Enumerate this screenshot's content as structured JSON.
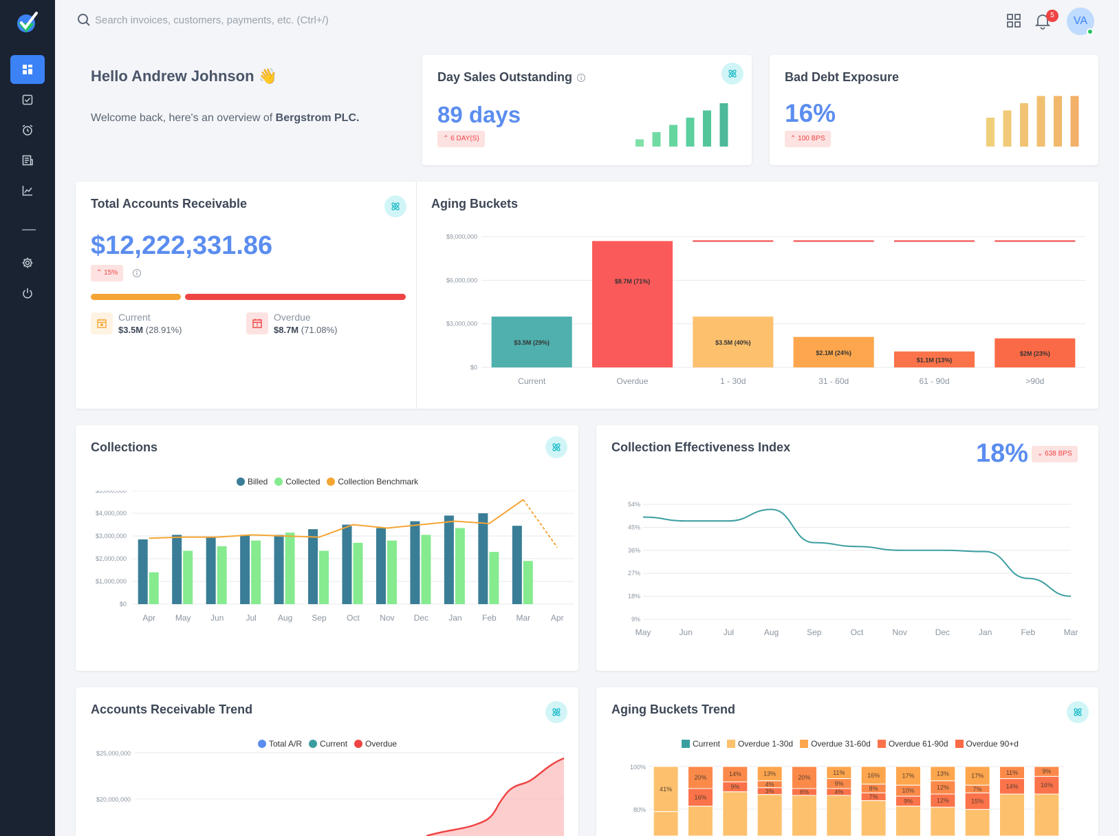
{
  "search": {
    "placeholder": "Search invoices, customers, payments, etc. (Ctrl+/)"
  },
  "notifications": {
    "count": "5"
  },
  "user": {
    "initials": "VA"
  },
  "greeting": {
    "title": "Hello Andrew Johnson 👋",
    "sub_prefix": "Welcome back, here's an overview of ",
    "company": "Bergstrom PLC."
  },
  "dso": {
    "title": "Day Sales Outstanding",
    "value": "89 days",
    "change": "6 DAY(S)",
    "bars": [
      1,
      2,
      3,
      4,
      5,
      6,
      8
    ]
  },
  "bad_debt": {
    "title": "Bad Debt Exposure",
    "value": "16%",
    "change": "100 BPS",
    "bars": [
      4,
      5,
      6,
      7,
      7,
      7,
      8
    ]
  },
  "total_ar": {
    "title": "Total Accounts Receivable",
    "value": "$12,222,331.86",
    "change": "15%",
    "current_share": 0.2891,
    "current_label": "Current",
    "current_value": "$3.5M",
    "current_pct": "(28.91%)",
    "overdue_label": "Overdue",
    "overdue_value": "$8.7M",
    "overdue_pct": "(71.08%)"
  },
  "aging": {
    "title": "Aging Buckets",
    "chart_data": {
      "type": "bar",
      "categories": [
        "Current",
        "Overdue",
        "1 - 30d",
        "31 - 60d",
        "61 - 90d",
        ">90d"
      ],
      "values": [
        3500000,
        8700000,
        3500000,
        2100000,
        1100000,
        2000000
      ],
      "bar_labels": [
        "$3.5M (29%)",
        "$8.7M (71%)",
        "$3.5M (40%)",
        "$2.1M (24%)",
        "$1.1M (13%)",
        "$2M (23%)"
      ],
      "ylim": [
        0,
        9000000
      ],
      "yticks": [
        "$0",
        "$3,000,000",
        "$6,000,000",
        "$9,000,000"
      ],
      "colors": [
        "#4fb0ad",
        "#fb5a5a",
        "#fdc16e",
        "#fda64d",
        "#fb734a",
        "#fb6a46"
      ]
    }
  },
  "collections": {
    "title": "Collections",
    "legend": [
      "Billed",
      "Collected",
      "Collection Benchmark"
    ],
    "chart_data": {
      "type": "bar",
      "categories": [
        "Apr",
        "May",
        "Jun",
        "Jul",
        "Aug",
        "Sep",
        "Oct",
        "Nov",
        "Dec",
        "Jan",
        "Feb",
        "Mar",
        "Apr"
      ],
      "series": [
        {
          "name": "Billed",
          "values": [
            2850000,
            3050000,
            2950000,
            3050000,
            3050000,
            3300000,
            3500000,
            3350000,
            3650000,
            3900000,
            4000000,
            3450000,
            null
          ]
        },
        {
          "name": "Collected",
          "values": [
            1400000,
            2350000,
            2550000,
            2800000,
            3150000,
            2350000,
            2700000,
            2800000,
            3050000,
            3350000,
            2300000,
            1900000,
            null
          ]
        },
        {
          "name": "Collection Benchmark",
          "values": [
            2900000,
            2950000,
            2950000,
            3050000,
            3000000,
            2950000,
            3500000,
            3350000,
            3500000,
            3650000,
            3550000,
            4600000,
            2500000
          ]
        }
      ],
      "ylim": [
        0,
        5000000
      ],
      "yticks": [
        "$0",
        "$1,000,000",
        "$2,000,000",
        "$3,000,000",
        "$4,000,000",
        "$5,000,000"
      ],
      "colors": {
        "Billed": "#3a7d96",
        "Collected": "#86ea8f",
        "Collection Benchmark": "#f5a534"
      }
    }
  },
  "cei": {
    "title": "Collection Effectiveness Index",
    "value": "18%",
    "change": "638 BPS",
    "chart_data": {
      "type": "line",
      "x": [
        "May",
        "Jun",
        "Jul",
        "Aug",
        "Sep",
        "Oct",
        "Nov",
        "Dec",
        "Jan",
        "Feb",
        "Mar"
      ],
      "values": [
        49,
        47.5,
        47.5,
        52,
        39,
        37.5,
        36,
        36,
        35.5,
        25,
        18
      ],
      "ylim": [
        9,
        54
      ],
      "yticks": [
        "9%",
        "18%",
        "27%",
        "36%",
        "45%",
        "54%"
      ],
      "color": "#3a9ea0"
    }
  },
  "ar_trend": {
    "title": "Accounts Receivable Trend",
    "legend": [
      "Total A/R",
      "Current",
      "Overdue"
    ],
    "legend_colors": [
      "#5b8def",
      "#3a9ea0",
      "#ef4444"
    ],
    "yticks": [
      "$25,000,000",
      "$20,000,000"
    ]
  },
  "aging_trend": {
    "title": "Aging Buckets Trend",
    "legend": [
      "Current",
      "Overdue 1-30d",
      "Overdue 31-60d",
      "Overdue 61-90d",
      "Overdue 90+d"
    ],
    "legend_colors": [
      "#3a9ea0",
      "#fdc16e",
      "#fda64d",
      "#fb734a",
      "#fb6a46"
    ],
    "yticks": [
      "100%",
      "80%"
    ],
    "chart_data": {
      "type": "bar",
      "segment_labels": [
        [
          "41%"
        ],
        [
          "16%",
          "20%"
        ],
        [
          "9%",
          "14%"
        ],
        [
          "3%",
          "4%",
          "13%"
        ],
        [
          "6%",
          "20%"
        ],
        [
          "4%",
          "9%",
          "11%"
        ],
        [
          "7%",
          "8%",
          "16%"
        ],
        [
          "9%",
          "10%",
          "17%"
        ],
        [
          "12%",
          "12%",
          "13%"
        ],
        [
          "15%",
          "7%",
          "17%"
        ],
        [
          "14%",
          "11%"
        ],
        [
          "16%",
          "9%"
        ]
      ]
    }
  }
}
